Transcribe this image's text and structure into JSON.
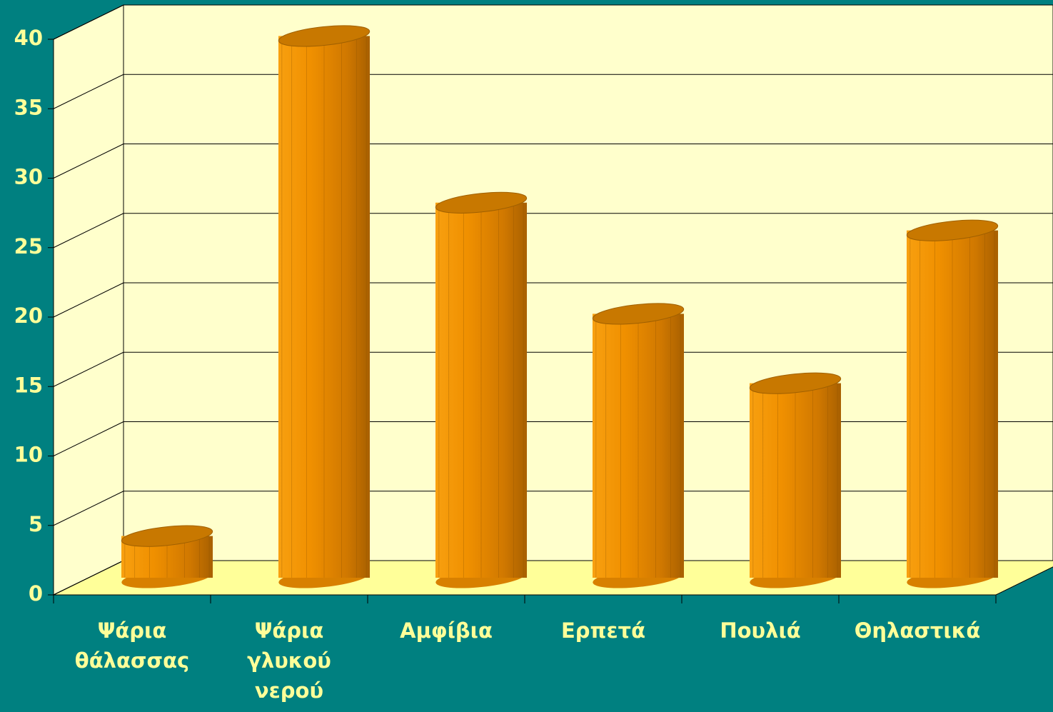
{
  "chart_data": {
    "type": "bar3d",
    "categories": [
      "Ψάρια θάλασσας",
      "Ψάρια γλυκού νερού",
      "Αμφίβια",
      "Ερπετά",
      "Πουλιά",
      "Θηλαστικά"
    ],
    "values": [
      3,
      39,
      27,
      19,
      14,
      25
    ],
    "color": "#f09000",
    "ylim": [
      0,
      40
    ],
    "yticks": [
      0,
      5,
      10,
      15,
      20,
      25,
      30,
      35,
      40
    ],
    "grid": true
  }
}
